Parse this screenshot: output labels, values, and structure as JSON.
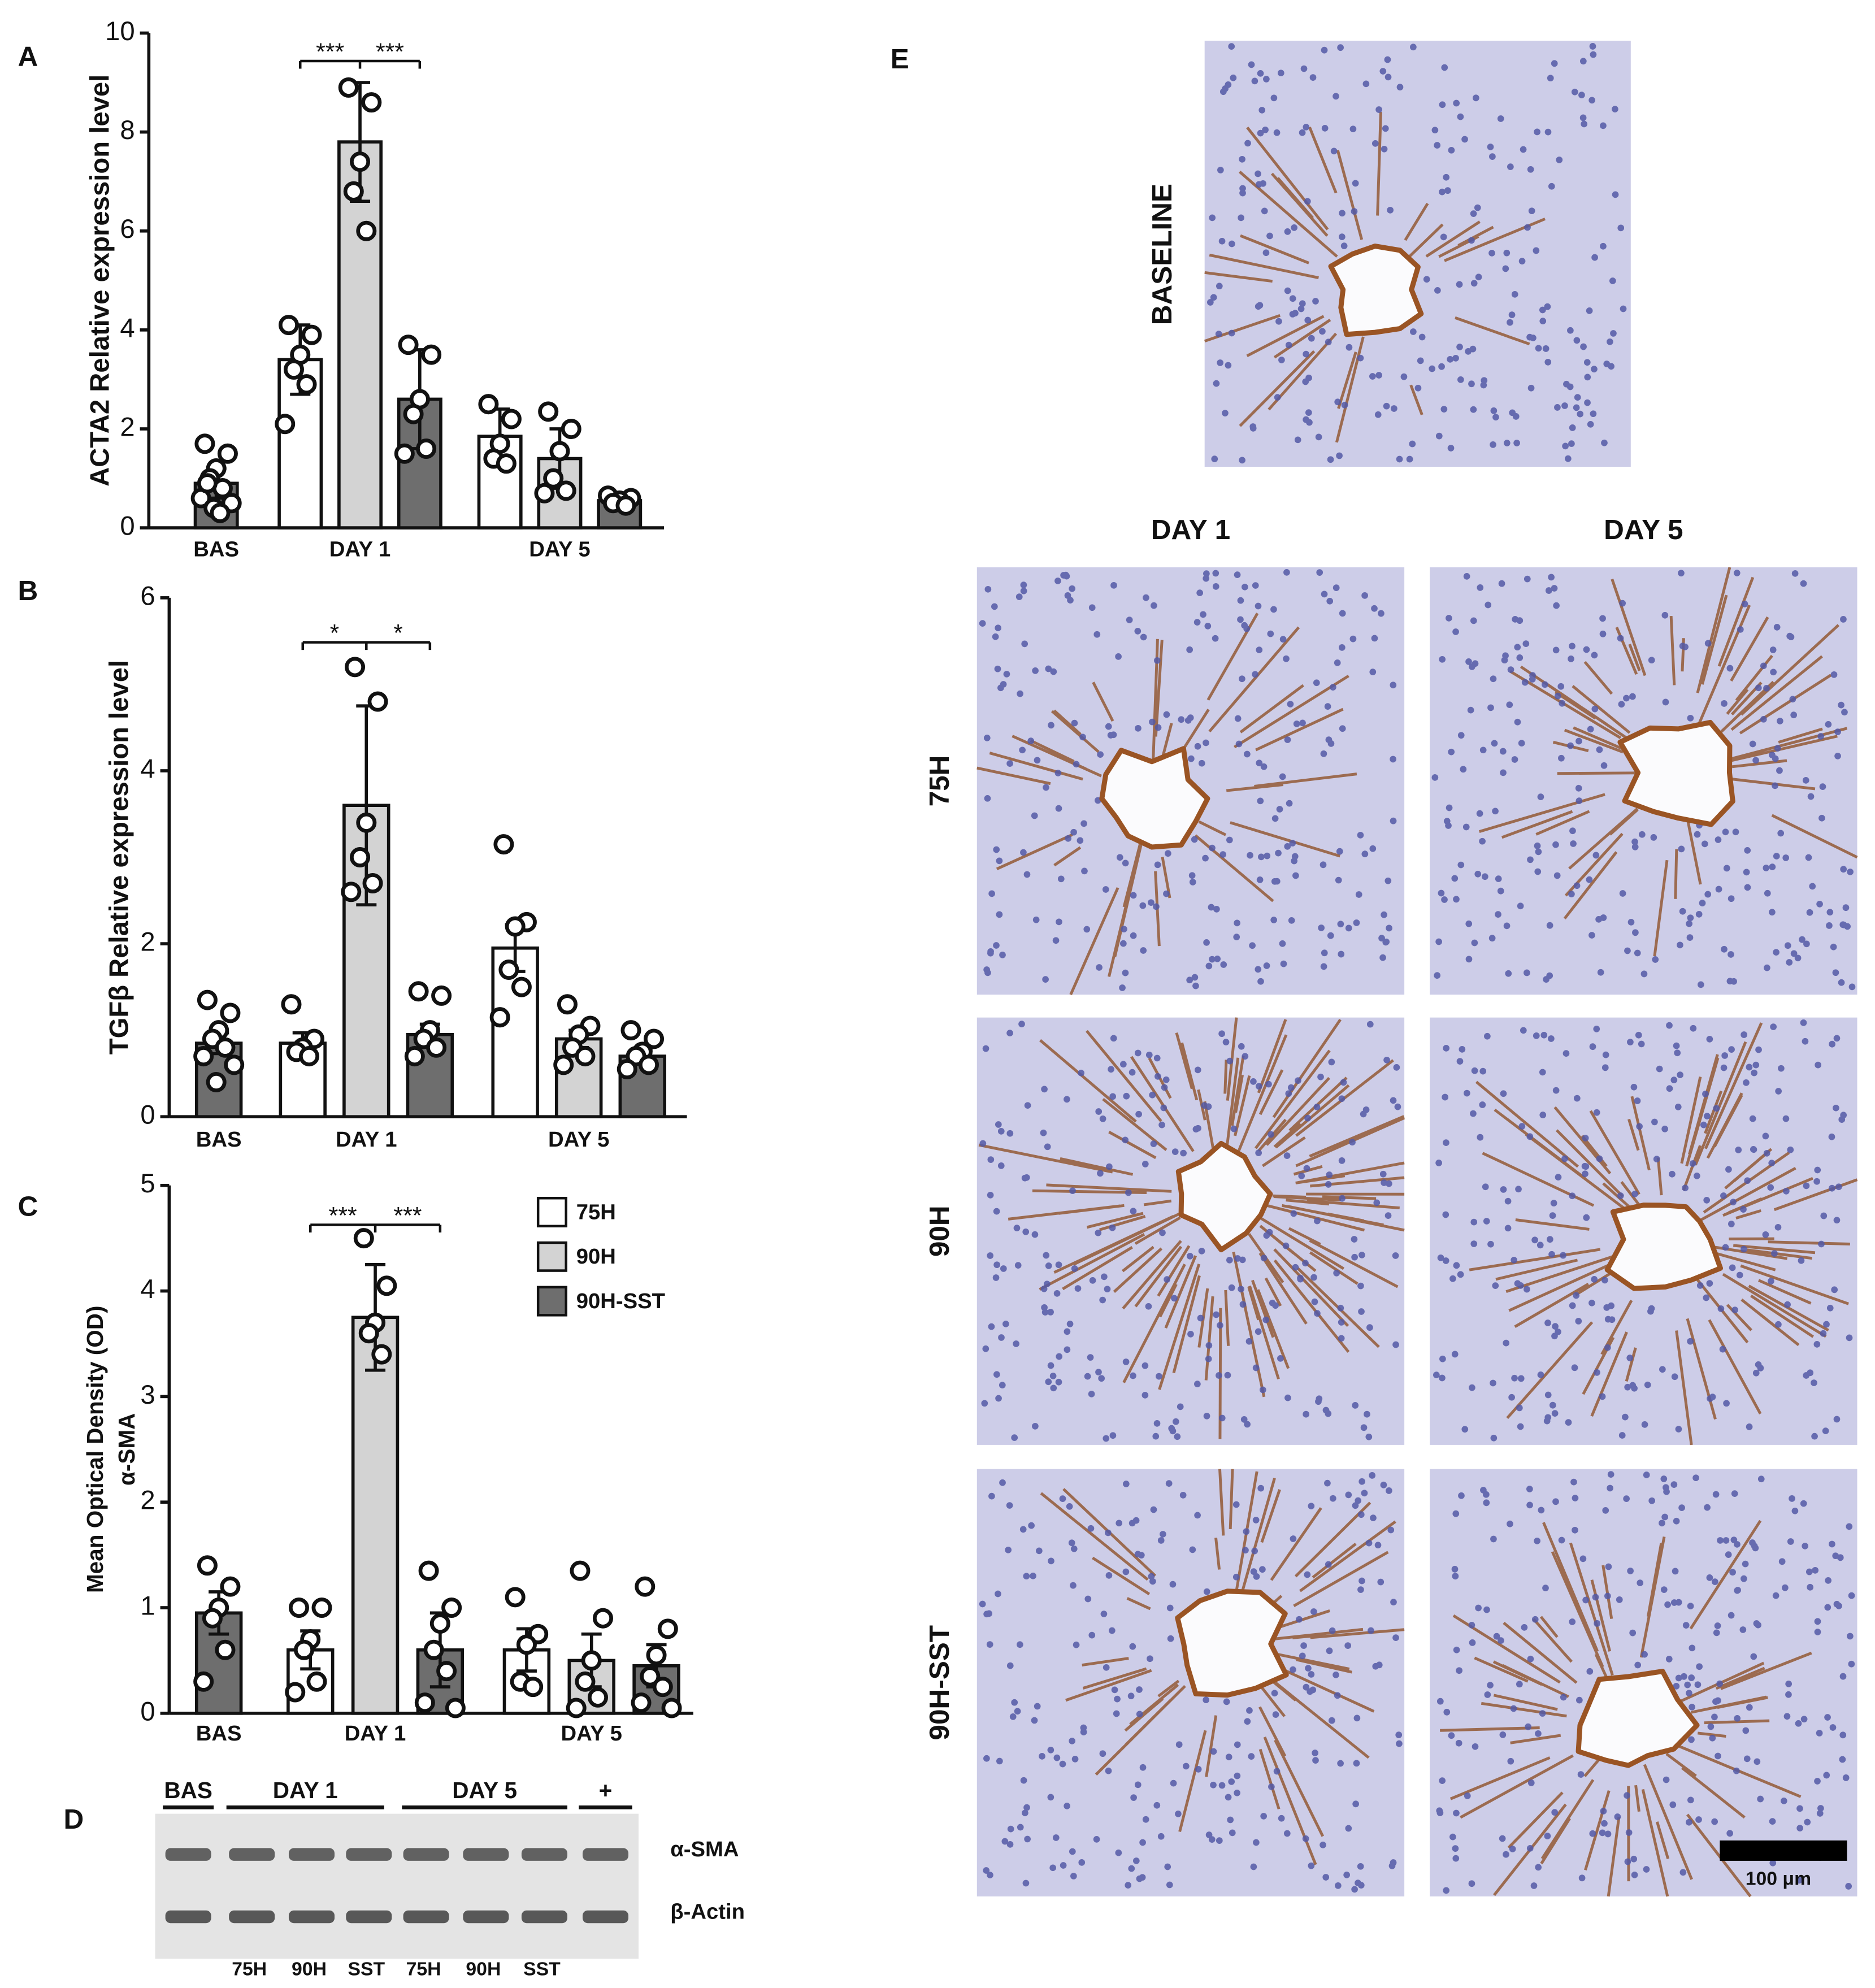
{
  "chart_data": [
    {
      "type": "bar",
      "label": "A",
      "ylabel": "ACTA2 Relative expression level",
      "categories": [
        "BAS",
        "DAY 1",
        "DAY 5"
      ],
      "ylim": [
        0,
        10
      ],
      "yticks": [
        0,
        2,
        4,
        6,
        8,
        10
      ],
      "annotations": [
        "***",
        "***"
      ],
      "series": [
        {
          "name": "75H",
          "color": "#ffffff",
          "values": [
            null,
            3.4,
            1.85
          ],
          "errors": [
            null,
            0.7,
            0.55
          ],
          "points": [
            null,
            [
              4.1,
              3.9,
              3.5,
              3.2,
              2.9,
              2.1
            ],
            [
              2.5,
              2.2,
              1.7,
              1.4,
              1.3
            ]
          ]
        },
        {
          "name": "90H",
          "color": "#d3d3d3",
          "values": [
            null,
            7.8,
            1.4
          ],
          "errors": [
            null,
            1.2,
            0.6
          ],
          "points": [
            null,
            [
              8.9,
              8.6,
              7.4,
              6.8,
              6.0
            ],
            [
              2.35,
              2.0,
              1.55,
              1.0,
              0.75,
              0.7
            ]
          ]
        },
        {
          "name": "90H-SST",
          "color": "#6e6e6e",
          "values": [
            0.9,
            2.6,
            0.55
          ],
          "errors": [
            0.3,
            1.0,
            0.1
          ],
          "points": [
            [
              1.7,
              1.5,
              1.2,
              1.0,
              0.8,
              0.6,
              0.5,
              0.4,
              0.3,
              0.9
            ],
            [
              3.7,
              3.5,
              2.6,
              2.3,
              1.6,
              1.5
            ],
            [
              0.65,
              0.6,
              0.55,
              0.5,
              0.45
            ]
          ]
        }
      ]
    },
    {
      "type": "bar",
      "label": "B",
      "ylabel": "TGFβ Relative expression level",
      "categories": [
        "BAS",
        "DAY 1",
        "DAY 5"
      ],
      "ylim": [
        0,
        6
      ],
      "yticks": [
        0,
        2,
        4,
        6
      ],
      "annotations": [
        "*",
        "*"
      ],
      "series": [
        {
          "name": "75H",
          "color": "#ffffff",
          "values": [
            null,
            0.85,
            1.95
          ],
          "errors": [
            null,
            0.12,
            0.27
          ],
          "points": [
            null,
            [
              1.3,
              0.9,
              0.8,
              0.75,
              0.7
            ],
            [
              3.15,
              2.25,
              2.2,
              1.7,
              1.5,
              1.15
            ]
          ]
        },
        {
          "name": "90H",
          "color": "#d3d3d3",
          "values": [
            null,
            3.6,
            0.9
          ],
          "errors": [
            null,
            1.15,
            0.1
          ],
          "points": [
            null,
            [
              5.2,
              4.8,
              3.4,
              3.0,
              2.7,
              2.6
            ],
            [
              1.3,
              1.05,
              0.95,
              0.8,
              0.7,
              0.6
            ]
          ]
        },
        {
          "name": "90H-SST",
          "color": "#6e6e6e",
          "values": [
            0.85,
            0.95,
            0.7
          ],
          "errors": [
            0.12,
            0.12,
            0.07
          ],
          "points": [
            [
              1.35,
              1.2,
              1.0,
              0.9,
              0.8,
              0.7,
              0.6,
              0.4
            ],
            [
              1.45,
              1.4,
              1.0,
              0.9,
              0.8,
              0.7
            ],
            [
              1.0,
              0.9,
              0.75,
              0.7,
              0.6,
              0.55
            ]
          ]
        }
      ]
    },
    {
      "type": "bar",
      "label": "C",
      "ylabel": [
        "Mean Optical Density (OD)",
        "α-SMA"
      ],
      "categories": [
        "BAS",
        "DAY 1",
        "DAY 5"
      ],
      "ylim": [
        0,
        5
      ],
      "yticks": [
        0,
        1,
        2,
        3,
        4,
        5
      ],
      "annotations": [
        "***",
        "***"
      ],
      "legend": "upper right",
      "series": [
        {
          "name": "75H",
          "color": "#ffffff",
          "values": [
            null,
            0.6,
            0.6
          ],
          "errors": [
            null,
            0.18,
            0.2
          ],
          "points": [
            null,
            [
              1.0,
              1.0,
              0.7,
              0.6,
              0.3,
              0.2
            ],
            [
              1.1,
              0.75,
              0.65,
              0.3,
              0.25
            ]
          ]
        },
        {
          "name": "90H",
          "color": "#d3d3d3",
          "values": [
            null,
            3.75,
            0.5
          ],
          "errors": [
            null,
            0.5,
            0.25
          ],
          "points": [
            null,
            [
              4.5,
              4.05,
              3.7,
              3.6,
              3.4
            ],
            [
              1.35,
              0.9,
              0.5,
              0.3,
              0.15,
              0.05
            ]
          ]
        },
        {
          "name": "90H-SST",
          "color": "#6e6e6e",
          "values": [
            0.95,
            0.6,
            0.45
          ],
          "errors": [
            0.2,
            0.35,
            0.2
          ],
          "points": [
            [
              1.4,
              1.2,
              1.0,
              0.9,
              0.6,
              0.3
            ],
            [
              1.35,
              1.0,
              0.85,
              0.6,
              0.4,
              0.1,
              0.05
            ],
            [
              1.2,
              0.8,
              0.55,
              0.35,
              0.25,
              0.1,
              0.05
            ]
          ]
        }
      ]
    }
  ],
  "blot": {
    "label": "D",
    "groups": [
      "BAS",
      "DAY 1",
      "DAY 5",
      "+"
    ],
    "rows": [
      "α-SMA",
      "β-Actin"
    ],
    "lanes": [
      "75H",
      "90H",
      "SST",
      "75H",
      "90H",
      "SST"
    ]
  },
  "histology": {
    "label": "E",
    "top_label": "BASELINE",
    "columns": [
      "DAY 1",
      "DAY 5"
    ],
    "rows": [
      "75H",
      "90H",
      "90H-SST"
    ],
    "scale_bar": "100 μm"
  }
}
